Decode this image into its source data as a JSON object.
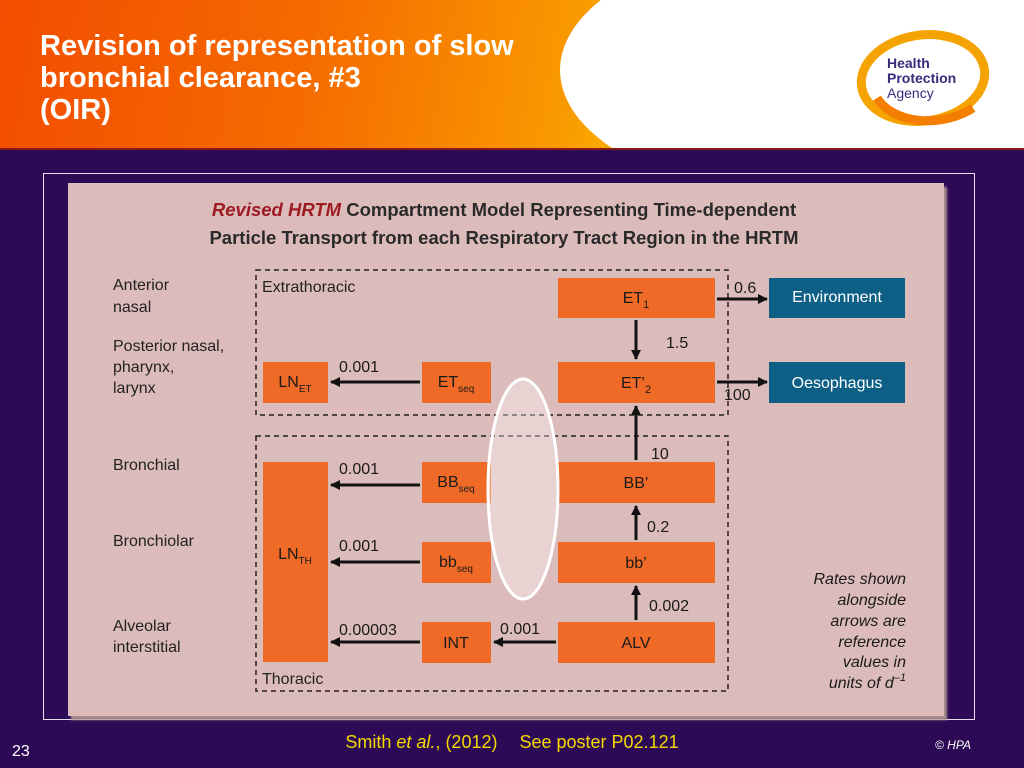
{
  "slide": {
    "title_lines": [
      "Revision of representation of slow",
      "bronchial clearance, #3",
      "(OIR)"
    ],
    "logo_lines": [
      "Health",
      "Protection",
      "Agency"
    ],
    "slide_number": "23",
    "copyright": "© HPA",
    "citation": {
      "author": "Smith",
      "etal": "et al.",
      "year": ", (2012)",
      "poster": "See poster P02.121"
    }
  },
  "colors": {
    "header_orange": "#f24d00",
    "header_yellow": "#fcc300",
    "background_purple": "#2d0a55",
    "panel_pink": "#dcbcbb",
    "compartment_orange": "#ef6a26",
    "sink_blue": "#0e5f86",
    "heading_red": "#9e1b24",
    "citation_yellow": "#f5d800"
  },
  "diagram": {
    "heading": {
      "line1_red": "Revised HRTM",
      "line1_rest": " Compartment Model Representing Time-dependent",
      "line2": "Particle Transport from each Respiratory Tract Region in the HRTM"
    },
    "region_labels": {
      "anterior_nasal": [
        "Anterior",
        "nasal"
      ],
      "posterior_nasal": [
        "Posterior nasal,",
        "pharynx,",
        "larynx"
      ],
      "bronchial": [
        "Bronchial"
      ],
      "bronchiolar": [
        "Bronchiolar"
      ],
      "alveolar_interstitial": [
        "Alveolar",
        "interstitial"
      ]
    },
    "group_labels": {
      "extrathoracic": "Extrathoracic",
      "thoracic": "Thoracic"
    },
    "compartments": {
      "et1": {
        "main": "ET",
        "sub": "1"
      },
      "et2": {
        "main": "ET’",
        "sub": "2"
      },
      "etseq": {
        "main": "ET",
        "sub": "seq"
      },
      "lnet": {
        "main": "LN",
        "sub": "ET"
      },
      "bb": {
        "main": "BB’",
        "sub": ""
      },
      "bbseq": {
        "main": "BB",
        "sub": "seq"
      },
      "bbsmall": {
        "main": "bb’",
        "sub": ""
      },
      "bbsmallseq": {
        "main": "bb",
        "sub": "seq"
      },
      "alv": {
        "main": "ALV",
        "sub": ""
      },
      "int": {
        "main": "INT",
        "sub": ""
      },
      "lnth": {
        "main": "LN",
        "sub": "TH"
      }
    },
    "sinks": {
      "environment": "Environment",
      "oesophagus": "Oesophagus"
    },
    "rates": {
      "et1_to_environment": "0.6",
      "et1_to_et2": "1.5",
      "et2_to_oesophagus": "100",
      "etseq_to_lnet": "0.001",
      "bb_to_et2": "10",
      "bbseq_to_lnth": "0.001",
      "bbsmall_to_bb": "0.2",
      "bbsmallseq_to_lnth": "0.001",
      "alv_to_bbsmall": "0.002",
      "int_to_lnth": "0.00003",
      "alv_to_int": "0.001"
    },
    "note_lines": [
      "Rates shown",
      "alongside",
      "arrows are",
      "reference",
      "values in"
    ],
    "note_last": {
      "text": "units of d",
      "sup": "–1"
    }
  }
}
